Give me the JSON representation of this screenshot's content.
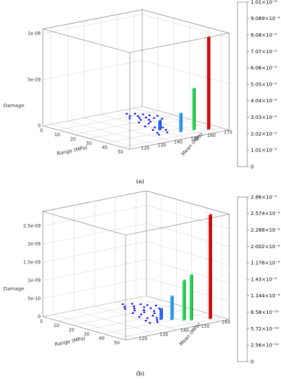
{
  "figure": {
    "caption_a": "(a)",
    "caption_b": "(b)"
  },
  "chart_data": [
    {
      "type": "bar3d",
      "panel": "a",
      "zlabel": "Damage",
      "xlabel": "Range (MPa)",
      "ylabel": "Mean (MPa)",
      "x_ticks": [
        "0",
        "10",
        "20",
        "30",
        "40",
        "50"
      ],
      "y_ticks": [
        "120",
        "130",
        "140",
        "150",
        "160",
        "170"
      ],
      "z_ticks": [
        "0",
        "5e-09",
        "1e-08"
      ],
      "xlim": [
        0,
        55
      ],
      "ylim": [
        115,
        175
      ],
      "zlim": [
        0,
        1.05e-08
      ],
      "grid": true,
      "colorscale": [
        "#0000ff",
        "#1e64ff",
        "#28a0ff",
        "#00dcdc",
        "#1edc50",
        "#5adc00",
        "#aae600",
        "#f0e600",
        "#ffaa00",
        "#ff5000",
        "#e60000"
      ],
      "colorbar_labels": [
        "0",
        "1.01×10⁻⁹",
        "2.02×10⁻⁹",
        "3.03×10⁻⁹",
        "4.04×10⁻⁹",
        "5.05×10⁻⁹",
        "6.06×10⁻⁹",
        "7.07×10⁻⁹",
        "8.08×10⁻⁹",
        "9.089×10⁻⁹",
        "1.01×10⁻⁸"
      ],
      "bars": [
        {
          "x": 37,
          "y": 150,
          "z": 1e-09
        },
        {
          "x": 45,
          "y": 155,
          "z": 2e-09
        },
        {
          "x": 46,
          "y": 162,
          "z": 4.5e-09
        },
        {
          "x": 49,
          "y": 168,
          "z": 1e-08
        }
      ],
      "points": [
        {
          "x": 6,
          "y": 160,
          "z": 1e-10
        },
        {
          "x": 8,
          "y": 163,
          "z": 1e-10
        },
        {
          "x": 10,
          "y": 158,
          "z": 1e-10
        },
        {
          "x": 11,
          "y": 165,
          "z": 1e-10
        },
        {
          "x": 12,
          "y": 161,
          "z": 1e-10
        },
        {
          "x": 13,
          "y": 155,
          "z": 1e-10
        },
        {
          "x": 14,
          "y": 166,
          "z": 1e-10
        },
        {
          "x": 15,
          "y": 159,
          "z": 1e-10
        },
        {
          "x": 16,
          "y": 162,
          "z": 1e-10
        },
        {
          "x": 17,
          "y": 168,
          "z": 1e-10
        },
        {
          "x": 18,
          "y": 157,
          "z": 1e-10
        },
        {
          "x": 19,
          "y": 164,
          "z": 1e-10
        },
        {
          "x": 20,
          "y": 160,
          "z": 1e-10
        },
        {
          "x": 21,
          "y": 153,
          "z": 1e-10
        },
        {
          "x": 22,
          "y": 166,
          "z": 1e-10
        },
        {
          "x": 23,
          "y": 158,
          "z": 1e-10
        },
        {
          "x": 24,
          "y": 163,
          "z": 1e-10
        },
        {
          "x": 25,
          "y": 155,
          "z": 1e-10
        },
        {
          "x": 27,
          "y": 160,
          "z": 1e-10
        },
        {
          "x": 28,
          "y": 150,
          "z": 1e-10
        },
        {
          "x": 30,
          "y": 157,
          "z": 1e-10
        },
        {
          "x": 32,
          "y": 152,
          "z": 1e-10
        },
        {
          "x": 34,
          "y": 155,
          "z": 1e-10
        },
        {
          "x": 35,
          "y": 148,
          "z": 1e-10
        },
        {
          "x": 38,
          "y": 153,
          "z": 1e-10
        },
        {
          "x": 40,
          "y": 146,
          "z": 1e-10
        },
        {
          "x": 42,
          "y": 150,
          "z": 1e-10
        },
        {
          "x": 43,
          "y": 144,
          "z": 1e-10
        }
      ]
    },
    {
      "type": "bar3d",
      "panel": "b",
      "zlabel": "Damage",
      "xlabel": "Range (MPa)",
      "ylabel": "Mean (MPa)",
      "x_ticks": [
        "0",
        "10",
        "20",
        "30",
        "40",
        "50"
      ],
      "y_ticks": [
        "120",
        "130",
        "140",
        "150",
        "160"
      ],
      "z_ticks": [
        "0",
        "5e-10",
        "1e-09",
        "1.5e-09",
        "2e-09",
        "2.5e-09"
      ],
      "xlim": [
        0,
        55
      ],
      "ylim": [
        115,
        165
      ],
      "zlim": [
        0,
        2.9e-09
      ],
      "grid": true,
      "colorscale": [
        "#0000ff",
        "#1e64ff",
        "#28a0ff",
        "#00dcdc",
        "#1edc50",
        "#5adc00",
        "#aae600",
        "#f0e600",
        "#ffaa00",
        "#ff5000",
        "#e60000"
      ],
      "colorbar_labels": [
        "0",
        "2.56×10⁻¹⁰",
        "5.72×10⁻¹⁰",
        "8.58×10⁻¹⁰",
        "1.144×10⁻⁹",
        "1.43×10⁻⁹",
        "1.176×10⁻⁹",
        "2.002×10⁻⁹",
        "2.288×10⁻⁹",
        "2.574×10⁻⁹",
        "2.86×10⁻⁹"
      ],
      "bars": [
        {
          "x": 37,
          "y": 145,
          "z": 3e-10
        },
        {
          "x": 40,
          "y": 148,
          "z": 6.5e-10
        },
        {
          "x": 44,
          "y": 151,
          "z": 1.1e-09
        },
        {
          "x": 46,
          "y": 153,
          "z": 1.25e-09
        },
        {
          "x": 49,
          "y": 160,
          "z": 2.86e-09
        }
      ],
      "points": [
        {
          "x": 5,
          "y": 150,
          "z": 5e-11
        },
        {
          "x": 7,
          "y": 153,
          "z": 5e-11
        },
        {
          "x": 9,
          "y": 148,
          "z": 5e-11
        },
        {
          "x": 10,
          "y": 155,
          "z": 5e-11
        },
        {
          "x": 11,
          "y": 151,
          "z": 5e-11
        },
        {
          "x": 12,
          "y": 146,
          "z": 5e-11
        },
        {
          "x": 13,
          "y": 156,
          "z": 5e-11
        },
        {
          "x": 14,
          "y": 149,
          "z": 5e-11
        },
        {
          "x": 15,
          "y": 153,
          "z": 5e-11
        },
        {
          "x": 16,
          "y": 158,
          "z": 5e-11
        },
        {
          "x": 17,
          "y": 147,
          "z": 5e-11
        },
        {
          "x": 18,
          "y": 154,
          "z": 5e-11
        },
        {
          "x": 19,
          "y": 150,
          "z": 5e-11
        },
        {
          "x": 20,
          "y": 144,
          "z": 5e-11
        },
        {
          "x": 21,
          "y": 156,
          "z": 5e-11
        },
        {
          "x": 22,
          "y": 148,
          "z": 5e-11
        },
        {
          "x": 23,
          "y": 152,
          "z": 5e-11
        },
        {
          "x": 24,
          "y": 145,
          "z": 5e-11
        },
        {
          "x": 26,
          "y": 150,
          "z": 5e-11
        },
        {
          "x": 27,
          "y": 142,
          "z": 5e-11
        },
        {
          "x": 29,
          "y": 147,
          "z": 5e-11
        },
        {
          "x": 31,
          "y": 143,
          "z": 5e-11
        },
        {
          "x": 33,
          "y": 146,
          "z": 5e-11
        },
        {
          "x": 34,
          "y": 140,
          "z": 5e-11
        },
        {
          "x": 36,
          "y": 144,
          "z": 5e-11
        },
        {
          "x": 38,
          "y": 139,
          "z": 5e-11
        },
        {
          "x": 39,
          "y": 142,
          "z": 5e-11
        }
      ]
    }
  ]
}
